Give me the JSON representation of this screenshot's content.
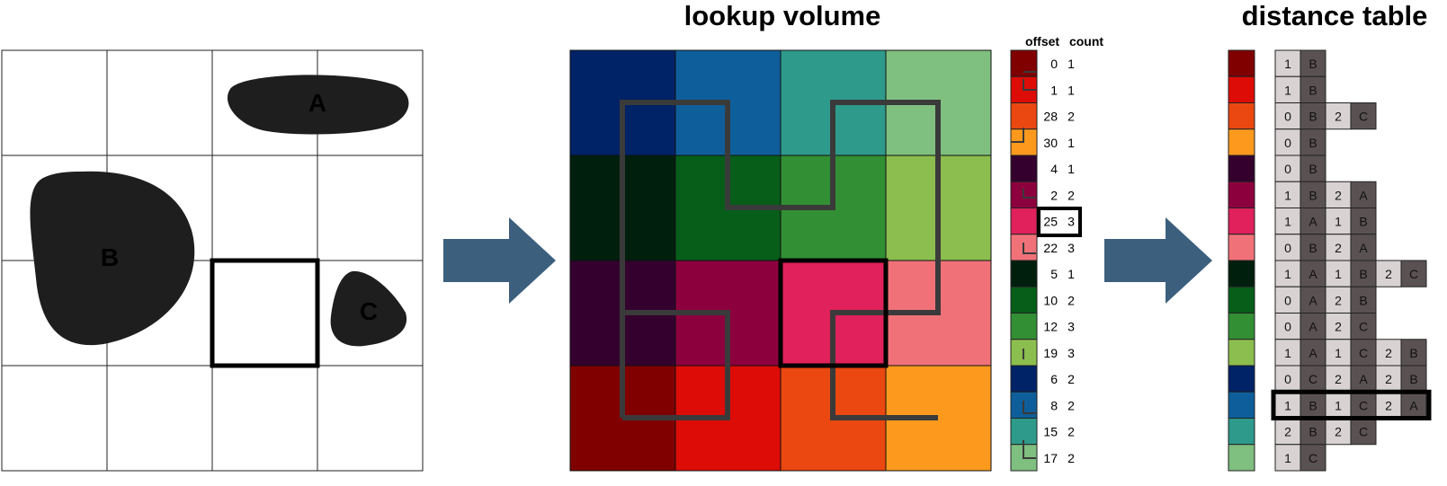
{
  "titles": {
    "lookup": "lookup volume",
    "distance": "distance table"
  },
  "space": {
    "shapes": [
      {
        "label": "A"
      },
      {
        "label": "B"
      },
      {
        "label": "C"
      }
    ]
  },
  "arrow_color": "#3c5f7d",
  "palette": [
    "#800000",
    "#dd0c07",
    "#ea4810",
    "#fd9a1d",
    "#34012e",
    "#8d003e",
    "#e0215c",
    "#f07278",
    "#001f0d",
    "#065e19",
    "#328f34",
    "#8cbd4f",
    "#002266",
    "#0f5e9c",
    "#2e9a8c",
    "#7fbf7f"
  ],
  "volume_rows": [
    [
      12,
      13,
      14,
      15
    ],
    [
      8,
      9,
      10,
      11
    ],
    [
      4,
      5,
      6,
      7
    ],
    [
      0,
      1,
      2,
      3
    ]
  ],
  "offsets": {
    "header_offset": "offset",
    "header_count": "count",
    "rows": [
      {
        "offset": "0",
        "count": "1"
      },
      {
        "offset": "1",
        "count": "1"
      },
      {
        "offset": "28",
        "count": "2"
      },
      {
        "offset": "30",
        "count": "1"
      },
      {
        "offset": "4",
        "count": "1"
      },
      {
        "offset": "2",
        "count": "2"
      },
      {
        "offset": "25",
        "count": "3"
      },
      {
        "offset": "22",
        "count": "3"
      },
      {
        "offset": "5",
        "count": "1"
      },
      {
        "offset": "10",
        "count": "2"
      },
      {
        "offset": "12",
        "count": "3"
      },
      {
        "offset": "19",
        "count": "3"
      },
      {
        "offset": "6",
        "count": "2"
      },
      {
        "offset": "8",
        "count": "2"
      },
      {
        "offset": "15",
        "count": "2"
      },
      {
        "offset": "17",
        "count": "2"
      }
    ]
  },
  "distance_table": {
    "rows": [
      [
        "1",
        "B"
      ],
      [
        "1",
        "B"
      ],
      [
        "0",
        "B",
        "2",
        "C"
      ],
      [
        "0",
        "B"
      ],
      [
        "0",
        "B"
      ],
      [
        "1",
        "B",
        "2",
        "A"
      ],
      [
        "1",
        "A",
        "1",
        "B"
      ],
      [
        "0",
        "B",
        "2",
        "A"
      ],
      [
        "1",
        "A",
        "1",
        "B",
        "2",
        "C"
      ],
      [
        "0",
        "A",
        "2",
        "B"
      ],
      [
        "0",
        "A",
        "2",
        "C"
      ],
      [
        "1",
        "A",
        "1",
        "C",
        "2",
        "B"
      ],
      [
        "0",
        "C",
        "2",
        "A",
        "2",
        "B"
      ],
      [
        "1",
        "B",
        "1",
        "C",
        "2",
        "A"
      ],
      [
        "2",
        "B",
        "2",
        "C"
      ],
      [
        "1",
        "C"
      ]
    ]
  }
}
